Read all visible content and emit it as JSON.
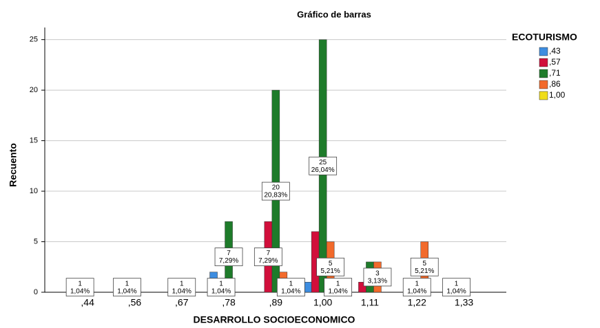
{
  "chart_data": {
    "type": "bar",
    "title": "Gráfico de barras",
    "x_label": "DESARROLLO SOCIOECONOMICO",
    "y_label": "Recuento",
    "legend_title": "ECOTURISMO",
    "categories": [
      ",44",
      ",56",
      ",67",
      ",78",
      ",89",
      "1,00",
      "1,11",
      "1,22",
      "1,33"
    ],
    "series": [
      {
        "name": ",43",
        "color": "#3d8de0",
        "values": [
          null,
          null,
          null,
          2,
          null,
          1,
          null,
          null,
          null
        ],
        "value_labels": [
          null,
          null,
          null,
          null,
          null,
          null,
          null,
          null,
          null
        ]
      },
      {
        "name": ",57",
        "color": "#d10f3b",
        "values": [
          1,
          1,
          null,
          1,
          7,
          6,
          1,
          null,
          1
        ],
        "value_labels": [
          [
            "1",
            "1,04%"
          ],
          [
            "1",
            "1,04%"
          ],
          null,
          [
            "1",
            "1,04%"
          ],
          [
            "7",
            "7,29%"
          ],
          null,
          null,
          null,
          [
            "1",
            "1,04%"
          ]
        ]
      },
      {
        "name": ",71",
        "color": "#1e7b2a",
        "values": [
          null,
          null,
          1,
          7,
          20,
          25,
          3,
          1,
          null
        ],
        "value_labels": [
          null,
          null,
          [
            "1",
            "1,04%"
          ],
          [
            "7",
            "7,29%"
          ],
          [
            "20",
            "20,83%"
          ],
          [
            "25",
            "26,04%"
          ],
          null,
          [
            "1",
            "1,04%"
          ],
          null
        ]
      },
      {
        "name": ",86",
        "color": "#f26a2b",
        "values": [
          null,
          null,
          null,
          null,
          2,
          5,
          3,
          5,
          null
        ],
        "value_labels": [
          null,
          null,
          null,
          null,
          null,
          [
            "5",
            "5,21%"
          ],
          [
            "3",
            "3,13%"
          ],
          [
            "5",
            "5,21%"
          ],
          null
        ]
      },
      {
        "name": "1,00",
        "color": "#f0dd1a",
        "values": [
          null,
          null,
          null,
          null,
          1,
          1,
          null,
          null,
          null
        ],
        "value_labels": [
          null,
          null,
          null,
          null,
          [
            "1",
            "1,04%"
          ],
          [
            "1",
            "1,04%"
          ],
          null,
          null,
          null
        ]
      }
    ],
    "ylim": [
      0,
      26.2
    ],
    "yticks": [
      0,
      5,
      10,
      15,
      20,
      25
    ],
    "grid": true,
    "legend": "right"
  }
}
